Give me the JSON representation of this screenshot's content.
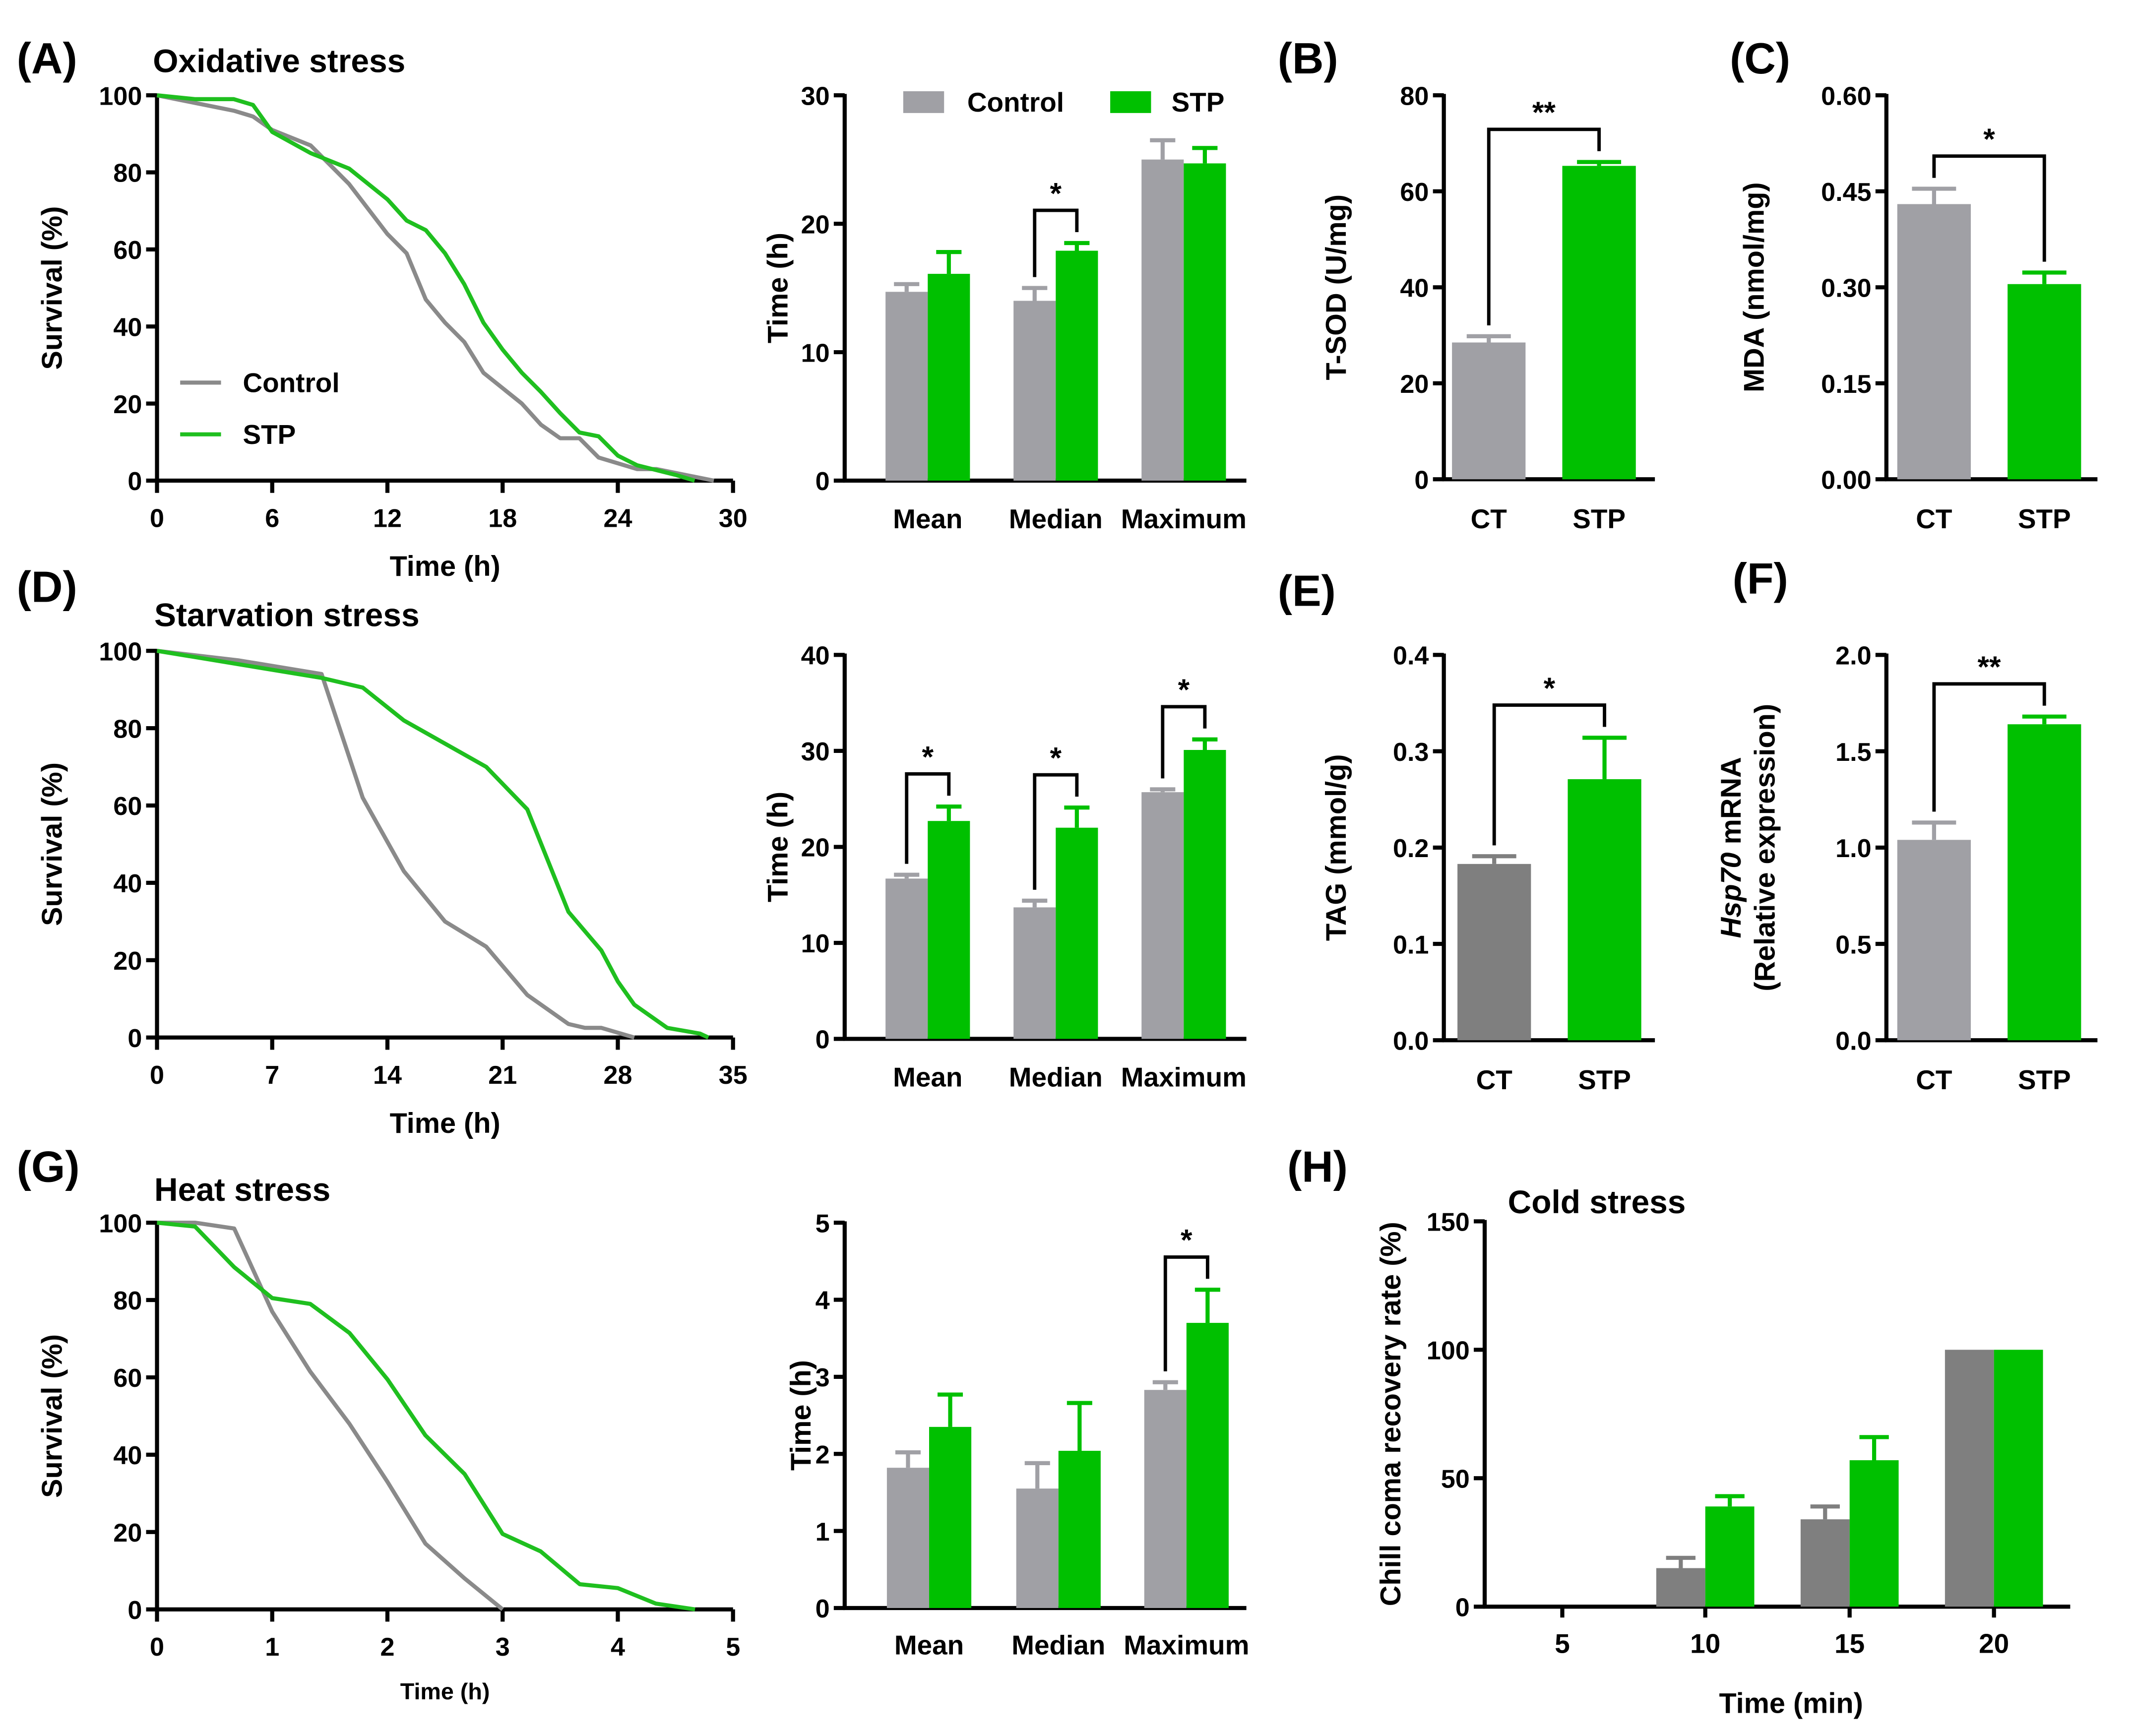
{
  "panels": {
    "A": "(A)",
    "B": "(B)",
    "C": "(C)",
    "D": "(D)",
    "E": "(E)",
    "F": "(F)",
    "G": "(G)",
    "H": "(H)"
  },
  "colors": {
    "control_bar": "#a0a0a5",
    "control_bar_dark": "#7f7f7f",
    "stp_bar": "#00c000",
    "control_line": "#8a8a8a",
    "stp_line": "#1fbf1f"
  },
  "chart_data": [
    {
      "panel": "A",
      "type": "line",
      "title": "Oxidative stress",
      "xlabel": "Time (h)",
      "ylabel": "Survival (%)",
      "xlim": [
        0,
        30
      ],
      "xticks": [
        "0",
        "6",
        "12",
        "18",
        "24",
        "30"
      ],
      "ylim": [
        0,
        100
      ],
      "yticks": [
        "0",
        "20",
        "40",
        "60",
        "80",
        "100"
      ],
      "legend": "middle-left",
      "series": [
        {
          "name": "Control",
          "points": [
            [
              0,
              100
            ],
            [
              2,
              98
            ],
            [
              4,
              96
            ],
            [
              5,
              94.5
            ],
            [
              6,
              91
            ],
            [
              8,
              87
            ],
            [
              10,
              77
            ],
            [
              12,
              64
            ],
            [
              13,
              59
            ],
            [
              14,
              47
            ],
            [
              15,
              41
            ],
            [
              16,
              36
            ],
            [
              17,
              28
            ],
            [
              18,
              24
            ],
            [
              19,
              20
            ],
            [
              20,
              14.5
            ],
            [
              21,
              11
            ],
            [
              22,
              11
            ],
            [
              23,
              6
            ],
            [
              24,
              4.5
            ],
            [
              25,
              3
            ],
            [
              26,
              3
            ],
            [
              29,
              0
            ]
          ]
        },
        {
          "name": "STP",
          "points": [
            [
              0,
              100
            ],
            [
              2,
              99
            ],
            [
              4,
              99
            ],
            [
              5,
              97.5
            ],
            [
              6,
              90.5
            ],
            [
              8,
              85
            ],
            [
              10,
              81
            ],
            [
              12,
              73
            ],
            [
              13,
              67.5
            ],
            [
              14,
              65
            ],
            [
              15,
              59
            ],
            [
              16,
              51
            ],
            [
              17,
              41
            ],
            [
              18,
              34
            ],
            [
              19,
              28
            ],
            [
              20,
              23
            ],
            [
              21,
              17.5
            ],
            [
              22,
              12.5
            ],
            [
              23,
              11.5
            ],
            [
              24,
              6.5
            ],
            [
              25,
              4
            ],
            [
              27,
              1.5
            ],
            [
              28,
              0
            ]
          ]
        }
      ]
    },
    {
      "panel": "A",
      "type": "bar",
      "ylabel": "Time (h)",
      "ylim": [
        0,
        30
      ],
      "yticks": [
        "0",
        "10",
        "20",
        "30"
      ],
      "categories": [
        "Mean",
        "Median",
        "Maximum"
      ],
      "legend": "top",
      "series": [
        {
          "name": "Control",
          "values": [
            14.7,
            14.0,
            25.0
          ],
          "errors": [
            0.6,
            1.0,
            1.5
          ]
        },
        {
          "name": "STP",
          "values": [
            16.1,
            17.9,
            24.7
          ],
          "errors": [
            1.7,
            0.6,
            1.2
          ]
        }
      ],
      "significance": [
        {
          "category": "Median",
          "label": "*"
        }
      ]
    },
    {
      "panel": "B",
      "type": "bar",
      "ylabel": "T-SOD (U/mg)",
      "ylim": [
        0,
        80
      ],
      "yticks": [
        "0",
        "20",
        "40",
        "60",
        "80"
      ],
      "categories": [
        "CT",
        "STP"
      ],
      "values": [
        28.5,
        65.3
      ],
      "errors": [
        1.3,
        0.8
      ],
      "significance": [
        {
          "label": "**"
        }
      ]
    },
    {
      "panel": "C",
      "type": "bar",
      "ylabel": "MDA (nmol/mg)",
      "ylim": [
        0,
        0.6
      ],
      "yticks": [
        "0.00",
        "0.15",
        "0.30",
        "0.45",
        "0.60"
      ],
      "categories": [
        "CT",
        "STP"
      ],
      "values": [
        0.43,
        0.305
      ],
      "errors": [
        0.024,
        0.018
      ],
      "significance": [
        {
          "label": "*"
        }
      ]
    },
    {
      "panel": "D",
      "type": "line",
      "title": "Starvation stress",
      "xlabel": "Time (h)",
      "ylabel": "Survival (%)",
      "xlim": [
        0,
        35
      ],
      "xticks": [
        "0",
        "7",
        "14",
        "21",
        "28",
        "35"
      ],
      "ylim": [
        0,
        100
      ],
      "yticks": [
        "0",
        "20",
        "40",
        "60",
        "80",
        "100"
      ],
      "series": [
        {
          "name": "Control",
          "points": [
            [
              0,
              100
            ],
            [
              5,
              97.5
            ],
            [
              10,
              94
            ],
            [
              12.5,
              62
            ],
            [
              15,
              43
            ],
            [
              17.5,
              30
            ],
            [
              20,
              23.5
            ],
            [
              22.5,
              11
            ],
            [
              25,
              3.5
            ],
            [
              26,
              2.5
            ],
            [
              27,
              2.5
            ],
            [
              29,
              0
            ]
          ]
        },
        {
          "name": "STP",
          "points": [
            [
              0,
              100
            ],
            [
              10,
              93
            ],
            [
              12.5,
              90.5
            ],
            [
              15,
              82
            ],
            [
              17.5,
              76
            ],
            [
              20,
              70
            ],
            [
              22.5,
              59
            ],
            [
              25,
              32.5
            ],
            [
              27,
              22.5
            ],
            [
              28,
              14.5
            ],
            [
              29,
              8.5
            ],
            [
              31,
              2.5
            ],
            [
              33,
              1
            ],
            [
              33.5,
              0
            ]
          ]
        }
      ]
    },
    {
      "panel": "D",
      "type": "bar",
      "ylabel": "Time (h)",
      "ylim": [
        0,
        40
      ],
      "yticks": [
        "0",
        "10",
        "20",
        "30",
        "40"
      ],
      "categories": [
        "Mean",
        "Median",
        "Maximum"
      ],
      "series": [
        {
          "name": "Control",
          "values": [
            16.7,
            13.7,
            25.7
          ],
          "errors": [
            0.4,
            0.7,
            0.3
          ]
        },
        {
          "name": "STP",
          "values": [
            22.7,
            22.0,
            30.1
          ],
          "errors": [
            1.5,
            2.1,
            1.1
          ]
        }
      ],
      "significance": [
        {
          "category": "Mean",
          "label": "*"
        },
        {
          "category": "Median",
          "label": "*"
        },
        {
          "category": "Maximum",
          "label": "*"
        }
      ]
    },
    {
      "panel": "E",
      "type": "bar",
      "ylabel": "TAG (mmol/g)",
      "ylim": [
        0,
        0.4
      ],
      "yticks": [
        "0.0",
        "0.1",
        "0.2",
        "0.3",
        "0.4"
      ],
      "categories": [
        "CT",
        "STP"
      ],
      "values": [
        0.183,
        0.271
      ],
      "errors": [
        0.008,
        0.043
      ],
      "significance": [
        {
          "label": "*"
        }
      ]
    },
    {
      "panel": "F",
      "type": "bar",
      "ylabel_gene": "Hsp70",
      "ylabel": " mRNA",
      "ylabel2": "(Relative expression)",
      "ylim": [
        0,
        2.0
      ],
      "yticks": [
        "0.0",
        "0.5",
        "1.0",
        "1.5",
        "2.0"
      ],
      "categories": [
        "CT",
        "STP"
      ],
      "values": [
        1.04,
        1.64
      ],
      "errors": [
        0.09,
        0.04
      ],
      "significance": [
        {
          "label": "**"
        }
      ]
    },
    {
      "panel": "G",
      "type": "line",
      "title": "Heat stress",
      "xlabel": "Time (h)",
      "ylabel": "Survival (%)",
      "xlim": [
        0,
        5
      ],
      "xticks": [
        "0",
        "1",
        "2",
        "3",
        "4",
        "5"
      ],
      "ylim": [
        0,
        100
      ],
      "yticks": [
        "0",
        "20",
        "40",
        "60",
        "80",
        "100"
      ],
      "series": [
        {
          "name": "Control",
          "points": [
            [
              0,
              100
            ],
            [
              0.33,
              100
            ],
            [
              0.67,
              98.5
            ],
            [
              1,
              77
            ],
            [
              1.33,
              61.5
            ],
            [
              1.67,
              48
            ],
            [
              2,
              33
            ],
            [
              2.33,
              17
            ],
            [
              2.67,
              8
            ],
            [
              3,
              0
            ]
          ]
        },
        {
          "name": "STP",
          "points": [
            [
              0,
              100
            ],
            [
              0.33,
              99
            ],
            [
              0.67,
              88.5
            ],
            [
              1,
              80.5
            ],
            [
              1.33,
              79
            ],
            [
              1.67,
              71.5
            ],
            [
              2,
              59.5
            ],
            [
              2.33,
              45
            ],
            [
              2.67,
              35
            ],
            [
              3,
              19.5
            ],
            [
              3.33,
              15
            ],
            [
              3.67,
              6.5
            ],
            [
              4,
              5.5
            ],
            [
              4.33,
              1.5
            ],
            [
              4.67,
              0
            ]
          ]
        }
      ]
    },
    {
      "panel": "G",
      "type": "bar",
      "ylabel": "Time (h)",
      "ylim": [
        0,
        5
      ],
      "yticks": [
        "0",
        "1",
        "2",
        "3",
        "4",
        "5"
      ],
      "categories": [
        "Mean",
        "Median",
        "Maximum"
      ],
      "series": [
        {
          "name": "Control",
          "values": [
            1.82,
            1.55,
            2.83
          ],
          "errors": [
            0.2,
            0.33,
            0.1
          ]
        },
        {
          "name": "STP",
          "values": [
            2.35,
            2.04,
            3.7
          ],
          "errors": [
            0.42,
            0.62,
            0.43
          ]
        }
      ],
      "significance": [
        {
          "category": "Maximum",
          "label": "*"
        }
      ]
    },
    {
      "panel": "H",
      "type": "bar",
      "title": "Cold stress",
      "xlabel": "Time (min)",
      "ylabel": "Chill coma recovery rate (%)",
      "ylim": [
        0,
        150
      ],
      "yticks": [
        "0",
        "50",
        "100",
        "150"
      ],
      "categories": [
        "5",
        "10",
        "15",
        "20"
      ],
      "series": [
        {
          "name": "Control",
          "values": [
            0,
            15,
            34,
            100
          ],
          "errors": [
            0,
            4,
            5,
            0
          ]
        },
        {
          "name": "STP",
          "values": [
            0,
            39,
            57,
            100
          ],
          "errors": [
            0,
            4,
            9,
            0
          ]
        }
      ]
    }
  ]
}
